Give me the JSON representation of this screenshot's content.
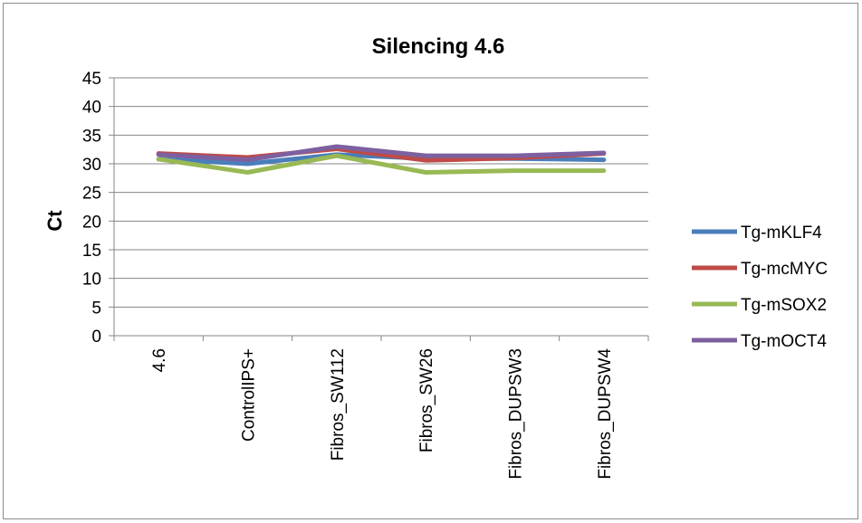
{
  "chart_data": {
    "type": "line",
    "title": "Silencing 4.6",
    "xlabel": "",
    "ylabel": "Ct",
    "ylim": [
      0,
      45
    ],
    "yticks": [
      0,
      5,
      10,
      15,
      20,
      25,
      30,
      35,
      40,
      45
    ],
    "grid": true,
    "legend_position": "right",
    "categories": [
      "4.6",
      "ControlIPS+",
      "Fibros_SW112",
      "Fibros_SW26",
      "Fibros_DUPSW3",
      "Fibros_DUPSW4"
    ],
    "series": [
      {
        "name": "Tg-mKLF4",
        "color": "#4a7ebb",
        "values": [
          30.8,
          30.0,
          31.6,
          30.9,
          30.9,
          30.7
        ]
      },
      {
        "name": "Tg-mcMYC",
        "color": "#be4b48",
        "values": [
          31.8,
          31.1,
          32.6,
          30.6,
          31.0,
          31.8
        ]
      },
      {
        "name": "Tg-mSOX2",
        "color": "#98b954",
        "values": [
          30.8,
          28.5,
          31.4,
          28.5,
          28.8,
          28.8
        ]
      },
      {
        "name": "Tg-mOCT4",
        "color": "#7d60a0",
        "values": [
          31.6,
          30.7,
          33.0,
          31.4,
          31.4,
          31.9
        ]
      }
    ]
  }
}
